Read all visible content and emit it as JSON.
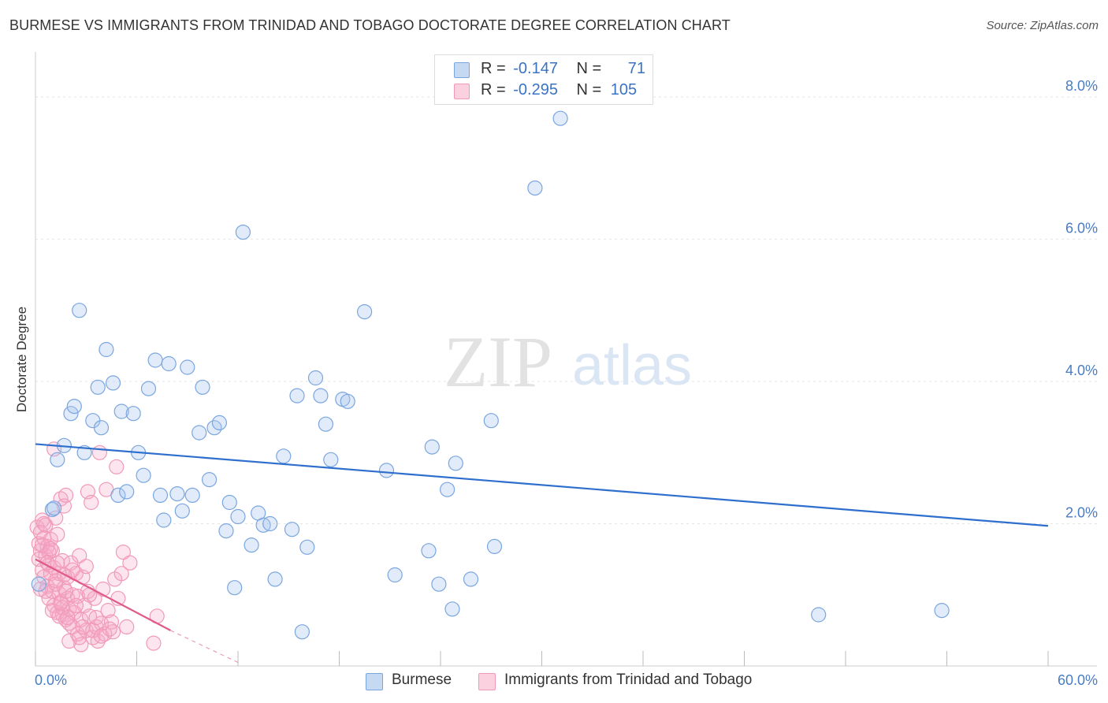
{
  "chart_data": {
    "type": "scatter",
    "title": "BURMESE VS IMMIGRANTS FROM TRINIDAD AND TOBAGO DOCTORATE DEGREE CORRELATION CHART",
    "source": "Source: ZipAtlas.com",
    "ylabel": "Doctorate Degree",
    "xlabel": "",
    "xlim": [
      0,
      60
    ],
    "ylim": [
      0,
      8.5
    ],
    "x_tick_labels": {
      "min": "0.0%",
      "max": "60.0%"
    },
    "y_ticks": [
      {
        "value": 2,
        "label": "2.0%"
      },
      {
        "value": 4,
        "label": "4.0%"
      },
      {
        "value": 6,
        "label": "6.0%"
      },
      {
        "value": 8,
        "label": "8.0%"
      }
    ],
    "watermark": {
      "zip": "ZIP",
      "atlas": "atlas"
    },
    "legend_stats": [
      {
        "r_label": "R =",
        "r_value": "-0.147",
        "n_label": "N =",
        "n_value": "71"
      },
      {
        "r_label": "R =",
        "r_value": "-0.295",
        "n_label": "N =",
        "n_value": "105"
      }
    ],
    "series": [
      {
        "name": "Burmese",
        "color": "#7aa6e0",
        "line_color": "#2e6fce",
        "trend": {
          "x0": 0,
          "y0": 3.12,
          "x1": 60,
          "y1": 1.97
        },
        "points": [
          [
            0.2,
            1.15
          ],
          [
            1.0,
            2.2
          ],
          [
            1.1,
            2.22
          ],
          [
            1.3,
            2.9
          ],
          [
            1.7,
            3.1
          ],
          [
            2.1,
            3.55
          ],
          [
            2.3,
            3.65
          ],
          [
            2.6,
            5.0
          ],
          [
            2.9,
            3.0
          ],
          [
            3.4,
            3.45
          ],
          [
            3.7,
            3.92
          ],
          [
            3.9,
            3.35
          ],
          [
            4.2,
            4.45
          ],
          [
            4.6,
            3.98
          ],
          [
            4.9,
            2.4
          ],
          [
            5.1,
            3.58
          ],
          [
            5.4,
            2.45
          ],
          [
            5.8,
            3.55
          ],
          [
            6.1,
            3.0
          ],
          [
            6.4,
            2.68
          ],
          [
            6.7,
            3.9
          ],
          [
            7.1,
            4.3
          ],
          [
            7.4,
            2.4
          ],
          [
            7.6,
            2.05
          ],
          [
            7.9,
            4.25
          ],
          [
            8.4,
            2.42
          ],
          [
            8.7,
            2.18
          ],
          [
            9.0,
            4.2
          ],
          [
            9.3,
            2.4
          ],
          [
            9.7,
            3.28
          ],
          [
            9.9,
            3.92
          ],
          [
            10.3,
            2.62
          ],
          [
            10.6,
            3.35
          ],
          [
            10.9,
            3.42
          ],
          [
            11.3,
            1.9
          ],
          [
            11.5,
            2.3
          ],
          [
            11.8,
            1.1
          ],
          [
            12.0,
            2.1
          ],
          [
            12.3,
            6.1
          ],
          [
            12.8,
            1.7
          ],
          [
            13.2,
            2.15
          ],
          [
            13.5,
            1.98
          ],
          [
            13.9,
            2.0
          ],
          [
            14.2,
            1.22
          ],
          [
            14.7,
            2.95
          ],
          [
            15.2,
            1.92
          ],
          [
            15.5,
            3.8
          ],
          [
            15.8,
            0.48
          ],
          [
            16.1,
            1.67
          ],
          [
            16.6,
            4.05
          ],
          [
            16.9,
            3.8
          ],
          [
            17.2,
            3.4
          ],
          [
            17.5,
            2.9
          ],
          [
            18.2,
            3.75
          ],
          [
            18.5,
            3.72
          ],
          [
            19.5,
            4.98
          ],
          [
            20.8,
            2.75
          ],
          [
            21.3,
            1.28
          ],
          [
            23.3,
            1.62
          ],
          [
            23.5,
            3.08
          ],
          [
            23.9,
            1.15
          ],
          [
            24.4,
            2.48
          ],
          [
            24.7,
            0.8
          ],
          [
            24.9,
            2.85
          ],
          [
            25.8,
            1.22
          ],
          [
            27.0,
            3.45
          ],
          [
            27.2,
            1.68
          ],
          [
            29.6,
            6.72
          ],
          [
            31.1,
            7.7
          ],
          [
            46.4,
            0.72
          ],
          [
            53.7,
            0.78
          ]
        ]
      },
      {
        "name": "Immigrants from Trinidad and Tobago",
        "color": "#f19ab8",
        "line_color": "#e05a8a",
        "trend": {
          "x0": 0,
          "y0": 1.5,
          "x1": 8,
          "y1": 0.5
        },
        "trend_dashed": {
          "x0": 8,
          "y0": 0.5,
          "x1": 12,
          "y1": 0.05
        },
        "points": [
          [
            0.1,
            1.95
          ],
          [
            0.2,
            1.72
          ],
          [
            0.2,
            1.5
          ],
          [
            0.3,
            1.88
          ],
          [
            0.3,
            1.62
          ],
          [
            0.4,
            2.05
          ],
          [
            0.4,
            1.35
          ],
          [
            0.5,
            1.8
          ],
          [
            0.5,
            1.25
          ],
          [
            0.6,
            1.55
          ],
          [
            0.6,
            1.98
          ],
          [
            0.7,
            1.12
          ],
          [
            0.7,
            1.68
          ],
          [
            0.8,
            0.95
          ],
          [
            0.8,
            1.42
          ],
          [
            0.9,
            1.3
          ],
          [
            0.9,
            1.78
          ],
          [
            1.0,
            1.05
          ],
          [
            1.0,
            1.62
          ],
          [
            1.1,
            0.85
          ],
          [
            1.1,
            1.38
          ],
          [
            1.2,
            1.2
          ],
          [
            1.2,
            2.08
          ],
          [
            1.3,
            0.75
          ],
          [
            1.3,
            1.85
          ],
          [
            1.4,
            1.3
          ],
          [
            1.4,
            1.02
          ],
          [
            1.5,
            0.9
          ],
          [
            1.5,
            2.35
          ],
          [
            1.6,
            1.48
          ],
          [
            1.6,
            0.72
          ],
          [
            1.7,
            2.25
          ],
          [
            1.7,
            1.1
          ],
          [
            1.8,
            0.65
          ],
          [
            1.8,
            2.4
          ],
          [
            1.9,
            0.95
          ],
          [
            1.9,
            1.25
          ],
          [
            2.0,
            0.35
          ],
          [
            2.0,
            0.8
          ],
          [
            2.1,
            1.45
          ],
          [
            2.2,
            0.55
          ],
          [
            2.2,
            1.0
          ],
          [
            2.3,
            0.75
          ],
          [
            2.4,
            1.3
          ],
          [
            2.5,
            0.45
          ],
          [
            2.5,
            0.98
          ],
          [
            2.6,
            1.55
          ],
          [
            2.7,
            0.65
          ],
          [
            2.7,
            0.3
          ],
          [
            2.8,
            1.25
          ],
          [
            2.9,
            0.85
          ],
          [
            3.0,
            0.5
          ],
          [
            3.1,
            2.45
          ],
          [
            3.1,
            1.05
          ],
          [
            3.2,
            0.7
          ],
          [
            3.3,
            2.3
          ],
          [
            3.4,
            0.4
          ],
          [
            3.5,
            0.95
          ],
          [
            3.6,
            0.55
          ],
          [
            3.7,
            0.35
          ],
          [
            3.8,
            3.0
          ],
          [
            3.9,
            0.6
          ],
          [
            4.0,
            1.08
          ],
          [
            4.1,
            0.45
          ],
          [
            4.2,
            2.48
          ],
          [
            4.3,
            0.78
          ],
          [
            4.5,
            0.62
          ],
          [
            4.6,
            0.48
          ],
          [
            4.7,
            1.22
          ],
          [
            4.8,
            2.8
          ],
          [
            4.9,
            0.95
          ],
          [
            5.1,
            1.3
          ],
          [
            5.2,
            1.6
          ],
          [
            5.4,
            0.55
          ],
          [
            5.6,
            1.45
          ],
          [
            0.4,
            1.7
          ],
          [
            0.6,
            1.05
          ],
          [
            0.8,
            1.6
          ],
          [
            1.0,
            0.78
          ],
          [
            1.2,
            1.15
          ],
          [
            1.4,
            0.7
          ],
          [
            1.6,
            0.82
          ],
          [
            1.8,
            1.05
          ],
          [
            2.0,
            0.6
          ],
          [
            2.2,
            1.35
          ],
          [
            2.4,
            0.85
          ],
          [
            2.6,
            0.4
          ],
          [
            2.8,
            0.55
          ],
          [
            3.0,
            1.4
          ],
          [
            3.2,
            1.0
          ],
          [
            3.4,
            0.5
          ],
          [
            3.6,
            0.68
          ],
          [
            3.9,
            0.42
          ],
          [
            4.4,
            0.52
          ],
          [
            7.0,
            0.32
          ],
          [
            7.2,
            0.7
          ],
          [
            0.3,
            1.08
          ],
          [
            0.5,
            2.0
          ],
          [
            0.7,
            1.45
          ],
          [
            0.9,
            1.65
          ],
          [
            1.1,
            3.05
          ],
          [
            1.3,
            1.45
          ],
          [
            1.5,
            0.88
          ],
          [
            1.7,
            1.28
          ],
          [
            1.9,
            0.68
          ]
        ]
      }
    ]
  },
  "legend_bottom": [
    {
      "label": "Burmese"
    },
    {
      "label": "Immigrants from Trinidad and Tobago"
    }
  ]
}
